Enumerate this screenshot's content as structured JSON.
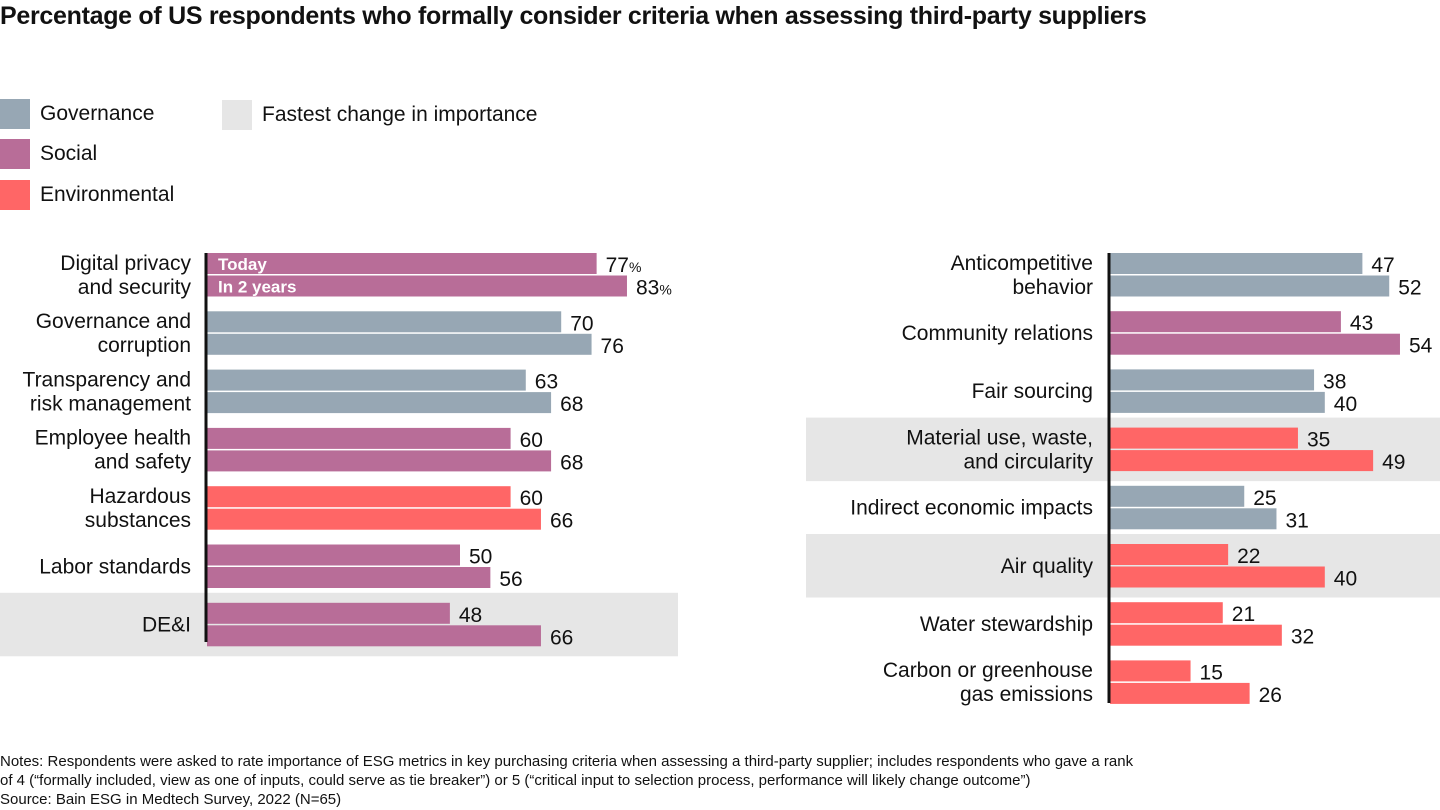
{
  "title": "Percentage of US respondents who formally consider criteria when assessing third-party suppliers",
  "legend": [
    {
      "label": "Governance",
      "color": "#97a7b4"
    },
    {
      "label": "Social",
      "color": "#b86d98"
    },
    {
      "label": "Environmental",
      "color": "#ff6666"
    },
    {
      "label": "Fastest change in importance",
      "color": "#e6e6e6"
    }
  ],
  "notes": [
    "Notes: Respondents were asked to rate importance of ESG metrics in key purchasing criteria when assessing a third-party supplier; includes respondents who gave a rank",
    "of 4 (“formally included, view as one of inputs, could serve as tie breaker”) or 5 (“critical input to selection process, performance will likely change outcome”)",
    "Source: Bain ESG in Medtech Survey, 2022 (N=65)"
  ],
  "chart_data": {
    "type": "bar",
    "orientation": "horizontal",
    "title": "Percentage of US respondents who formally consider criteria when assessing third-party suppliers",
    "unit": "%",
    "series_names": [
      "Today",
      "In 2 years"
    ],
    "category_colors": {
      "Governance": "#97a7b4",
      "Social": "#b86d98",
      "Environmental": "#ff6666"
    },
    "highlight_color": "#e6e6e6",
    "panels": [
      {
        "position": "left",
        "categories": [
          {
            "label": [
              "Digital privacy",
              "and security"
            ],
            "group": "Social",
            "today": 77,
            "in_2_years": 83,
            "highlight": false,
            "show_series_labels": true,
            "show_percent": true
          },
          {
            "label": [
              "Governance and",
              "corruption"
            ],
            "group": "Governance",
            "today": 70,
            "in_2_years": 76,
            "highlight": false
          },
          {
            "label": [
              "Transparency and",
              "risk management"
            ],
            "group": "Governance",
            "today": 63,
            "in_2_years": 68,
            "highlight": false
          },
          {
            "label": [
              "Employee health",
              "and safety"
            ],
            "group": "Social",
            "today": 60,
            "in_2_years": 68,
            "highlight": false
          },
          {
            "label": [
              "Hazardous",
              "substances"
            ],
            "group": "Environmental",
            "today": 60,
            "in_2_years": 66,
            "highlight": false
          },
          {
            "label": [
              "Labor standards"
            ],
            "group": "Social",
            "today": 50,
            "in_2_years": 56,
            "highlight": false
          },
          {
            "label": [
              "DE&I"
            ],
            "group": "Social",
            "today": 48,
            "in_2_years": 66,
            "highlight": true
          }
        ]
      },
      {
        "position": "right",
        "categories": [
          {
            "label": [
              "Anticompetitive",
              "behavior"
            ],
            "group": "Governance",
            "today": 47,
            "in_2_years": 52,
            "highlight": false
          },
          {
            "label": [
              "Community relations"
            ],
            "group": "Social",
            "today": 43,
            "in_2_years": 54,
            "highlight": false
          },
          {
            "label": [
              "Fair sourcing"
            ],
            "group": "Governance",
            "today": 38,
            "in_2_years": 40,
            "highlight": false
          },
          {
            "label": [
              "Material use, waste,",
              "and circularity"
            ],
            "group": "Environmental",
            "today": 35,
            "in_2_years": 49,
            "highlight": true
          },
          {
            "label": [
              "Indirect economic impacts"
            ],
            "group": "Governance",
            "today": 25,
            "in_2_years": 31,
            "highlight": false
          },
          {
            "label": [
              "Air quality"
            ],
            "group": "Environmental",
            "today": 22,
            "in_2_years": 40,
            "highlight": true
          },
          {
            "label": [
              "Water stewardship"
            ],
            "group": "Environmental",
            "today": 21,
            "in_2_years": 32,
            "highlight": false
          },
          {
            "label": [
              "Carbon or greenhouse",
              "gas emissions"
            ],
            "group": "Environmental",
            "today": 15,
            "in_2_years": 26,
            "highlight": false
          }
        ]
      }
    ]
  }
}
